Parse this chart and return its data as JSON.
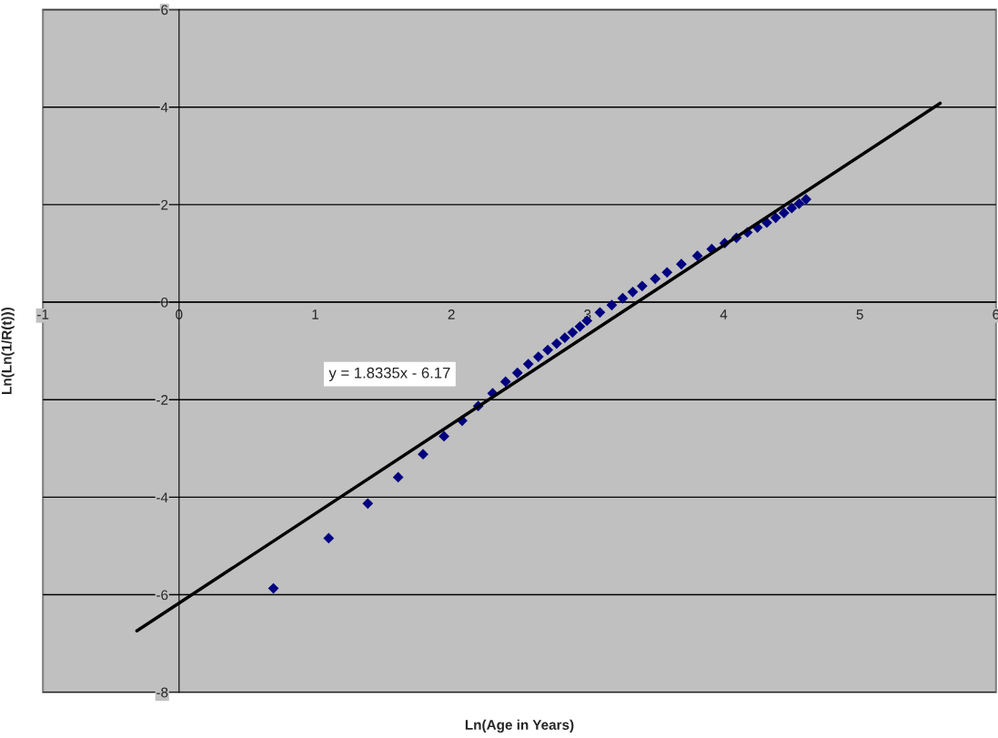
{
  "chart_data": {
    "type": "scatter",
    "xlabel": "Ln(Age in Years)",
    "ylabel": "Ln(Ln(1/R(t)))",
    "xlim": [
      -1,
      6
    ],
    "ylim": [
      -8,
      6
    ],
    "xticks": [
      -1,
      0,
      1,
      2,
      3,
      4,
      5,
      6
    ],
    "yticks": [
      -8,
      -6,
      -4,
      -2,
      0,
      2,
      4,
      6
    ],
    "grid": "y",
    "marker": "diamond",
    "legend": false,
    "annotations": [
      "y = 1.8335x - 6.17"
    ],
    "series": [
      {
        "color": "#000080",
        "x": [
          0.693,
          1.099,
          1.386,
          1.609,
          1.792,
          1.946,
          2.079,
          2.197,
          2.303,
          2.398,
          2.485,
          2.565,
          2.639,
          2.708,
          2.773,
          2.833,
          2.89,
          2.944,
          2.996,
          3.091,
          3.178,
          3.258,
          3.332,
          3.401,
          3.497,
          3.584,
          3.689,
          3.807,
          3.912,
          4.007,
          4.094,
          4.174,
          4.248,
          4.317,
          4.382,
          4.443,
          4.5,
          4.554,
          4.605
        ],
        "values": [
          -5.87,
          -4.84,
          -4.13,
          -3.59,
          -3.12,
          -2.75,
          -2.43,
          -2.13,
          -1.87,
          -1.63,
          -1.45,
          -1.27,
          -1.12,
          -0.98,
          -0.85,
          -0.73,
          -0.62,
          -0.5,
          -0.38,
          -0.21,
          -0.06,
          0.08,
          0.21,
          0.33,
          0.48,
          0.61,
          0.78,
          0.95,
          1.09,
          1.21,
          1.32,
          1.43,
          1.53,
          1.63,
          1.73,
          1.83,
          1.93,
          2.02,
          2.11
        ]
      },
      {
        "type": "line",
        "marker": "none",
        "color": "#000000",
        "x": [
          -0.31,
          5.59
        ],
        "values": [
          -6.74,
          4.08
        ]
      }
    ]
  }
}
